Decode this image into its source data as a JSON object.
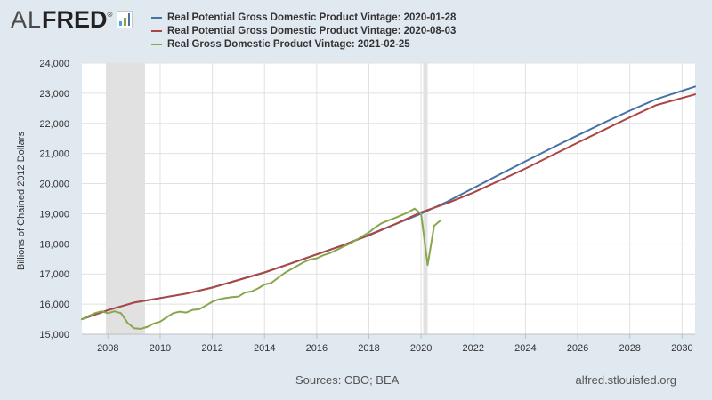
{
  "logo": {
    "al": "AL",
    "fred": "FRED",
    "registered": "®"
  },
  "colors": {
    "blue": "#4572a7",
    "red": "#aa4643",
    "green": "#89a54e",
    "recession": "#e1e1e1",
    "grid": "#e1e1e1"
  },
  "chart_data": {
    "type": "line",
    "ylabel": "Billions of Chained 2012 Dollars",
    "xlim": [
      2007.0,
      2030.5
    ],
    "ylim": [
      15000,
      24000
    ],
    "x_ticks": [
      2008,
      2010,
      2012,
      2014,
      2016,
      2018,
      2020,
      2022,
      2024,
      2026,
      2028,
      2030
    ],
    "y_ticks": [
      15000,
      16000,
      17000,
      18000,
      19000,
      20000,
      21000,
      22000,
      23000,
      24000
    ],
    "x_tick_labels": [
      "2008",
      "2010",
      "2012",
      "2014",
      "2016",
      "2018",
      "2020",
      "2022",
      "2024",
      "2026",
      "2028",
      "2030"
    ],
    "y_tick_labels": [
      "15,000",
      "16,000",
      "17,000",
      "18,000",
      "19,000",
      "20,000",
      "21,000",
      "22,000",
      "23,000",
      "24,000"
    ],
    "recessions": [
      [
        2007.92,
        2009.42
      ],
      [
        2020.08,
        2020.25
      ]
    ],
    "series": [
      {
        "name": "Real Potential Gross Domestic Product Vintage: 2020-01-28",
        "color": "#4572a7",
        "points": [
          [
            2007.0,
            15500
          ],
          [
            2008.0,
            15800
          ],
          [
            2009.0,
            16050
          ],
          [
            2010.0,
            16200
          ],
          [
            2011.0,
            16350
          ],
          [
            2012.0,
            16550
          ],
          [
            2013.0,
            16800
          ],
          [
            2014.0,
            17050
          ],
          [
            2015.0,
            17350
          ],
          [
            2016.0,
            17650
          ],
          [
            2017.0,
            17950
          ],
          [
            2018.0,
            18300
          ],
          [
            2019.0,
            18650
          ],
          [
            2020.0,
            19000
          ],
          [
            2021.0,
            19400
          ],
          [
            2022.0,
            19850
          ],
          [
            2023.0,
            20300
          ],
          [
            2024.0,
            20740
          ],
          [
            2025.0,
            21180
          ],
          [
            2026.0,
            21600
          ],
          [
            2027.0,
            22020
          ],
          [
            2028.0,
            22420
          ],
          [
            2029.0,
            22800
          ],
          [
            2030.5,
            23220
          ]
        ]
      },
      {
        "name": "Real Potential Gross Domestic Product Vintage: 2020-08-03",
        "color": "#aa4643",
        "points": [
          [
            2007.0,
            15500
          ],
          [
            2008.0,
            15800
          ],
          [
            2009.0,
            16050
          ],
          [
            2010.0,
            16200
          ],
          [
            2011.0,
            16350
          ],
          [
            2012.0,
            16550
          ],
          [
            2013.0,
            16800
          ],
          [
            2014.0,
            17050
          ],
          [
            2015.0,
            17350
          ],
          [
            2016.0,
            17650
          ],
          [
            2017.0,
            17950
          ],
          [
            2018.0,
            18280
          ],
          [
            2019.0,
            18650
          ],
          [
            2020.0,
            19050
          ],
          [
            2021.0,
            19350
          ],
          [
            2022.0,
            19700
          ],
          [
            2023.0,
            20100
          ],
          [
            2024.0,
            20500
          ],
          [
            2025.0,
            20930
          ],
          [
            2026.0,
            21360
          ],
          [
            2027.0,
            21780
          ],
          [
            2028.0,
            22200
          ],
          [
            2029.0,
            22600
          ],
          [
            2030.5,
            22960
          ]
        ]
      },
      {
        "name": "Real Gross Domestic Product Vintage: 2021-02-25",
        "color": "#89a54e",
        "points": [
          [
            2007.0,
            15500
          ],
          [
            2007.25,
            15600
          ],
          [
            2007.5,
            15700
          ],
          [
            2007.75,
            15760
          ],
          [
            2008.0,
            15700
          ],
          [
            2008.25,
            15760
          ],
          [
            2008.5,
            15700
          ],
          [
            2008.75,
            15380
          ],
          [
            2009.0,
            15200
          ],
          [
            2009.25,
            15180
          ],
          [
            2009.5,
            15240
          ],
          [
            2009.75,
            15350
          ],
          [
            2010.0,
            15420
          ],
          [
            2010.25,
            15560
          ],
          [
            2010.5,
            15700
          ],
          [
            2010.75,
            15750
          ],
          [
            2011.0,
            15720
          ],
          [
            2011.25,
            15810
          ],
          [
            2011.5,
            15830
          ],
          [
            2011.75,
            15950
          ],
          [
            2012.0,
            16080
          ],
          [
            2012.25,
            16160
          ],
          [
            2012.5,
            16200
          ],
          [
            2012.75,
            16230
          ],
          [
            2013.0,
            16250
          ],
          [
            2013.25,
            16380
          ],
          [
            2013.5,
            16420
          ],
          [
            2013.75,
            16520
          ],
          [
            2014.0,
            16650
          ],
          [
            2014.25,
            16700
          ],
          [
            2014.5,
            16860
          ],
          [
            2014.75,
            17020
          ],
          [
            2015.0,
            17150
          ],
          [
            2015.25,
            17270
          ],
          [
            2015.5,
            17390
          ],
          [
            2015.75,
            17480
          ],
          [
            2016.0,
            17520
          ],
          [
            2016.25,
            17620
          ],
          [
            2016.5,
            17690
          ],
          [
            2016.75,
            17790
          ],
          [
            2017.0,
            17900
          ],
          [
            2017.25,
            18000
          ],
          [
            2017.5,
            18120
          ],
          [
            2017.75,
            18250
          ],
          [
            2018.0,
            18380
          ],
          [
            2018.25,
            18550
          ],
          [
            2018.5,
            18690
          ],
          [
            2018.75,
            18780
          ],
          [
            2019.0,
            18860
          ],
          [
            2019.25,
            18950
          ],
          [
            2019.5,
            19050
          ],
          [
            2019.75,
            19170
          ],
          [
            2020.0,
            19000
          ],
          [
            2020.25,
            17300
          ],
          [
            2020.5,
            18600
          ],
          [
            2020.75,
            18780
          ]
        ]
      }
    ]
  },
  "footer": {
    "source": "Sources: CBO; BEA",
    "site": "alfred.stlouisfed.org"
  }
}
